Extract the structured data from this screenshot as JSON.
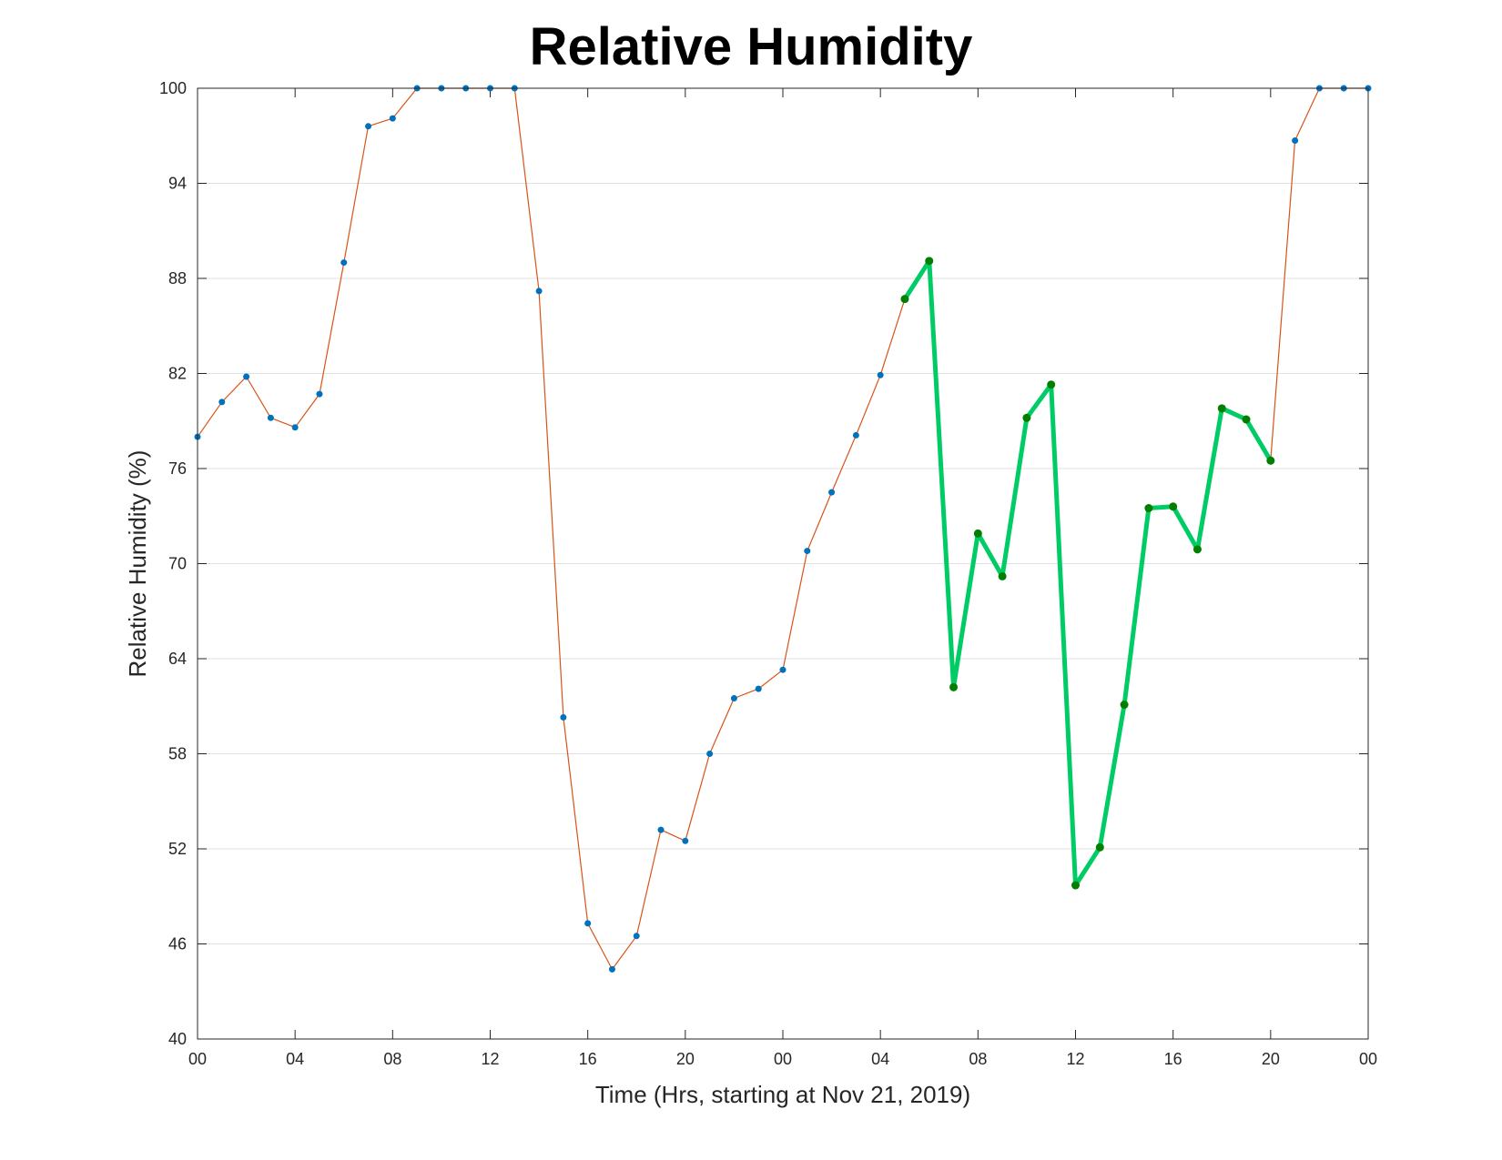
{
  "chart_data": {
    "type": "line",
    "title": "Relative Humidity",
    "xlabel": "Time (Hrs, starting at Nov 21, 2019)",
    "ylabel": "Relative Humidity (%)",
    "xlim": [
      0,
      48
    ],
    "ylim": [
      40,
      100
    ],
    "yticks": [
      40,
      46,
      52,
      58,
      64,
      70,
      76,
      82,
      88,
      94,
      100
    ],
    "xticks": [
      0,
      4,
      8,
      12,
      16,
      20,
      24,
      28,
      32,
      36,
      40,
      44,
      48
    ],
    "xtick_labels": [
      "00",
      "04",
      "08",
      "12",
      "16",
      "20",
      "00",
      "04",
      "08",
      "12",
      "16",
      "20",
      "00"
    ],
    "grid": "horizontal",
    "series": [
      {
        "color": "#D95319",
        "marker_color": "#0072BD",
        "x": [
          0,
          1,
          2,
          3,
          4,
          5,
          6,
          7,
          8,
          9,
          10,
          11,
          12,
          13,
          14,
          15,
          16,
          17,
          18,
          19,
          20,
          21,
          22,
          23,
          24,
          25,
          26,
          27,
          28,
          29,
          30,
          31,
          32,
          33,
          34,
          35,
          36,
          37,
          38,
          39,
          40,
          41,
          42,
          43,
          44,
          45,
          46,
          47,
          48
        ],
        "y": [
          78.0,
          80.2,
          81.8,
          79.2,
          78.6,
          80.7,
          89.0,
          97.6,
          98.1,
          100,
          100,
          100,
          100,
          100,
          87.2,
          60.3,
          47.3,
          44.4,
          46.5,
          53.2,
          52.5,
          58.0,
          61.5,
          62.1,
          63.3,
          70.8,
          74.5,
          78.1,
          81.9,
          86.7,
          89.1,
          62.2,
          71.9,
          69.2,
          79.2,
          81.3,
          49.7,
          52.1,
          61.1,
          73.5,
          73.6,
          70.9,
          79.8,
          79.1,
          76.5,
          96.7,
          100,
          100,
          100
        ]
      },
      {
        "color": "#00CC66",
        "marker_color": "#007F00",
        "x": [
          29,
          30,
          31,
          32,
          33,
          34,
          35,
          36,
          37,
          38,
          39,
          40,
          41,
          42,
          43,
          44
        ],
        "y": [
          86.7,
          89.1,
          62.2,
          71.9,
          69.2,
          79.2,
          81.3,
          49.7,
          52.1,
          61.1,
          73.5,
          73.6,
          70.9,
          79.8,
          79.1,
          76.5
        ]
      }
    ]
  }
}
